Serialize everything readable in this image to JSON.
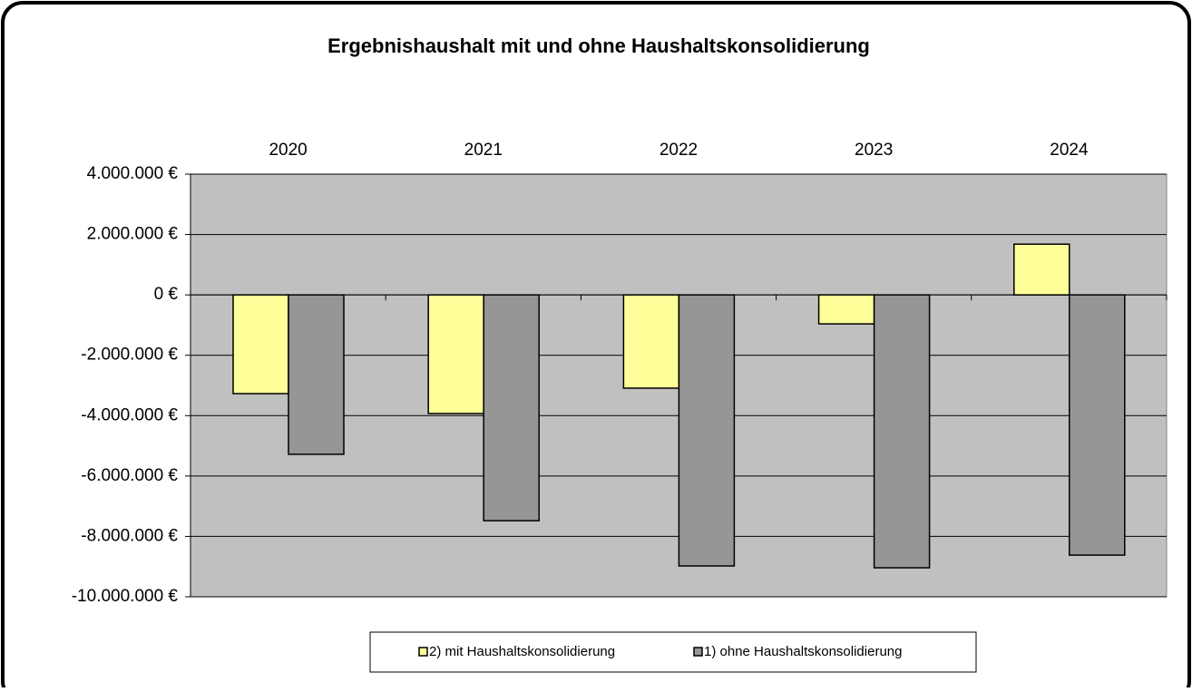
{
  "chart_data": {
    "type": "bar",
    "title": "Ergebnishaushalt mit und ohne Haushaltskonsolidierung",
    "categories": [
      "2020",
      "2021",
      "2022",
      "2023",
      "2024"
    ],
    "series": [
      {
        "name": "2) mit Haushaltskonsolidierung",
        "color": "#ffff99",
        "values": [
          -3270000,
          -3930000,
          -3090000,
          -960000,
          1680000
        ]
      },
      {
        "name": "1) ohne Haushaltskonsolidierung",
        "color": "#969696",
        "values": [
          -5280000,
          -7480000,
          -8980000,
          -9040000,
          -8620000
        ]
      }
    ],
    "ylim": [
      -10000000,
      4000000
    ],
    "yticks": [
      {
        "value": -10000000,
        "label": "-10.000.000 €"
      },
      {
        "value": -8000000,
        "label": "-8.000.000 €"
      },
      {
        "value": -6000000,
        "label": "-6.000.000 €"
      },
      {
        "value": -4000000,
        "label": "-4.000.000 €"
      },
      {
        "value": -2000000,
        "label": "-2.000.000 €"
      },
      {
        "value": 0,
        "label": "0 €"
      },
      {
        "value": 2000000,
        "label": "2.000.000 €"
      },
      {
        "value": 4000000,
        "label": "4.000.000 €"
      }
    ],
    "grid": true,
    "legend": "bottom",
    "plot_background": "#c0c0c0"
  }
}
